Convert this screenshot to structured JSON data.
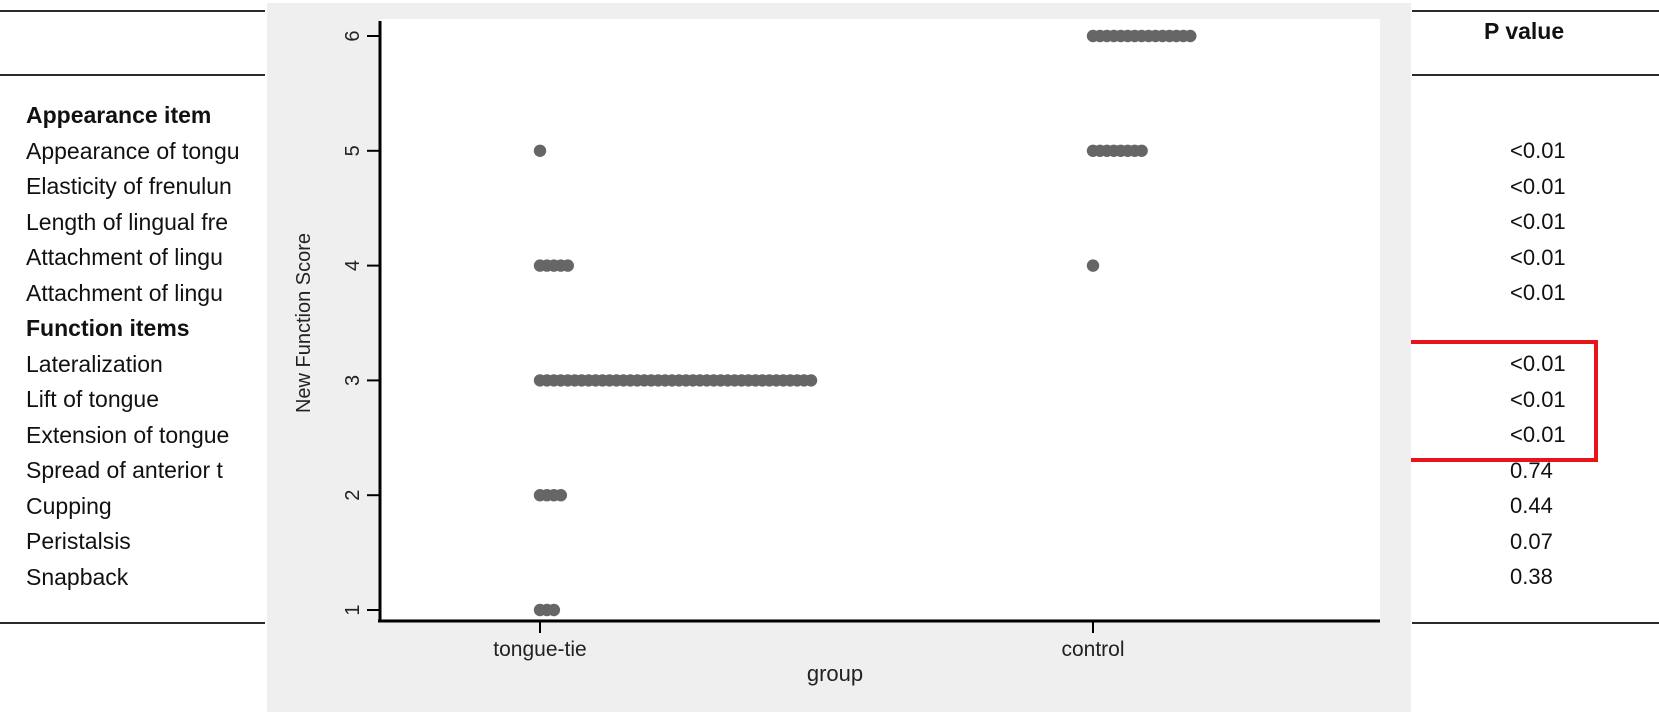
{
  "table": {
    "pvalue_header": "P value",
    "left_rows": [
      {
        "text": "Appearance item",
        "bold": true
      },
      {
        "text": "Appearance of tongu",
        "bold": false
      },
      {
        "text": "Elasticity of frenulun",
        "bold": false
      },
      {
        "text": "Length of lingual fre",
        "bold": false
      },
      {
        "text": "Attachment of lingu",
        "bold": false
      },
      {
        "text": "Attachment of lingu",
        "bold": false
      },
      {
        "text": "Function items",
        "bold": true
      },
      {
        "text": "Lateralization",
        "bold": false
      },
      {
        "text": "Lift of tongue",
        "bold": false
      },
      {
        "text": "Extension of tongue",
        "bold": false
      },
      {
        "text": "Spread of anterior t",
        "bold": false
      },
      {
        "text": "Cupping",
        "bold": false
      },
      {
        "text": "Peristalsis",
        "bold": false
      },
      {
        "text": "Snapback",
        "bold": false
      }
    ],
    "pvalues": [
      "<0.01",
      "<0.01",
      "<0.01",
      "<0.01",
      "<0.01",
      "",
      "<0.01",
      "<0.01",
      "<0.01",
      "0.74",
      "0.44",
      "0.07",
      "0.38"
    ],
    "highlight_color": "#e8141b"
  },
  "chart_data": {
    "type": "scatter",
    "title": "",
    "xlabel": "group",
    "ylabel": "New Function Score",
    "categories": [
      "tongue-tie",
      "control"
    ],
    "ylim": [
      1,
      6
    ],
    "yticks": [
      1,
      2,
      3,
      4,
      5,
      6
    ],
    "grid": false,
    "point_color": "#666666",
    "panel_color": "#efefef",
    "series": [
      {
        "category": "tongue-tie",
        "points": [
          {
            "y": 5,
            "count": 1
          },
          {
            "y": 4,
            "count": 5
          },
          {
            "y": 3,
            "count": 40
          },
          {
            "y": 2,
            "count": 4
          },
          {
            "y": 1,
            "count": 3
          }
        ]
      },
      {
        "category": "control",
        "points": [
          {
            "y": 6,
            "count": 15
          },
          {
            "y": 5,
            "count": 8
          },
          {
            "y": 4,
            "count": 1
          }
        ]
      }
    ]
  }
}
